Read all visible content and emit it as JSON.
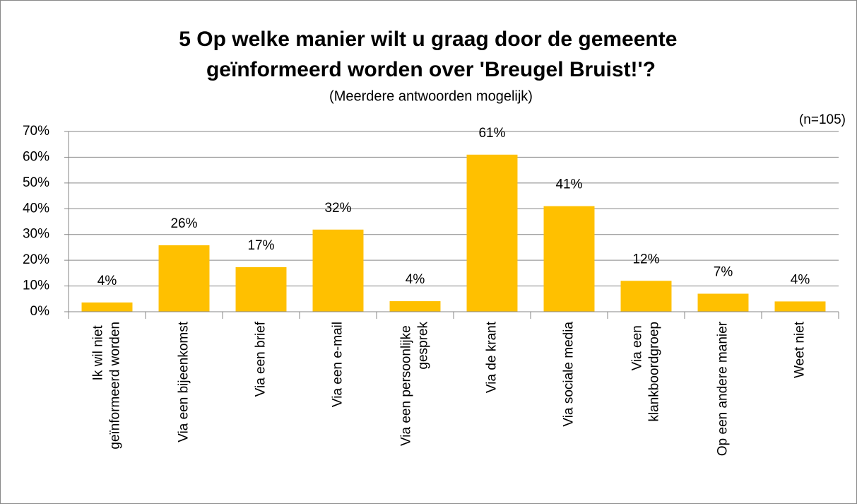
{
  "chart_data": {
    "type": "bar",
    "title": "5 Op welke manier wilt u graag door de gemeente geïnformeerd worden over 'Breugel Bruist!'?",
    "subtitle": "(Meerdere antwoorden mogelijk)",
    "annotation": "(n=105)",
    "categories": [
      "Ik wil niet geïnformeerd worden",
      "Via een bijeenkomst",
      "Via een brief",
      "Via een e-mail",
      "Via een persoonlijke gesprek",
      "Via de krant",
      "Via sociale media",
      "Via een klankboordgroep",
      "Op een andere manier",
      "Weet niet"
    ],
    "values": [
      3.6,
      25.8,
      17.3,
      31.9,
      4.1,
      61,
      41,
      12,
      7,
      4
    ],
    "value_labels": [
      "4%",
      "26%",
      "17%",
      "32%",
      "4%",
      "61%",
      "41%",
      "12%",
      "7%",
      "4%"
    ],
    "color": "#ffc000",
    "ylim": [
      0,
      70
    ],
    "yticks": [
      {
        "value": 0,
        "label": "0%"
      },
      {
        "value": 10,
        "label": "10%"
      },
      {
        "value": 20,
        "label": "20%"
      },
      {
        "value": 30,
        "label": "30%"
      },
      {
        "value": 40,
        "label": "40%"
      },
      {
        "value": 50,
        "label": "50%"
      },
      {
        "value": 60,
        "label": "60%"
      },
      {
        "value": 70,
        "label": "70%"
      }
    ],
    "grid": true
  }
}
